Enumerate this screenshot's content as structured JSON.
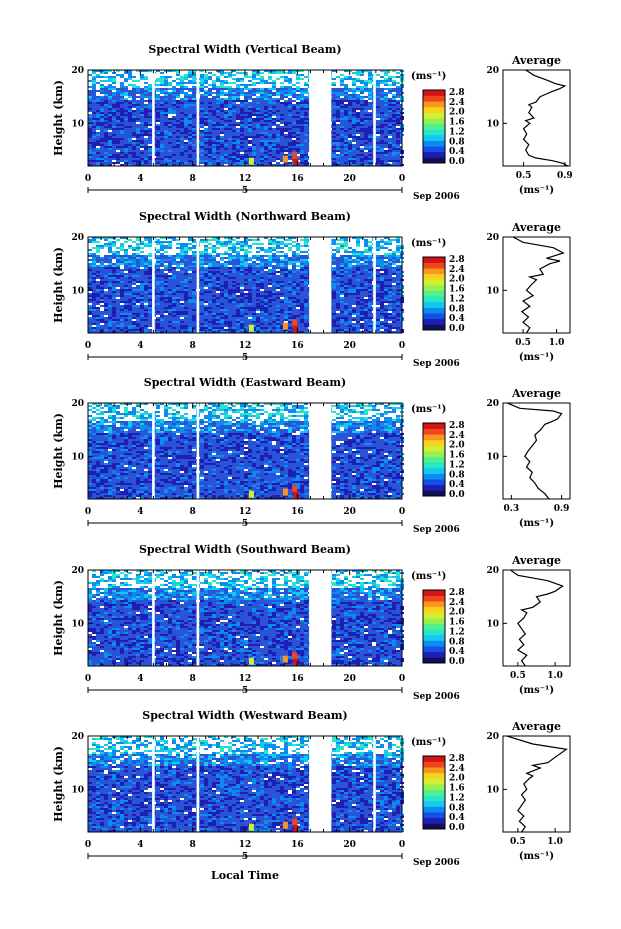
{
  "x_axis": {
    "ticks": [
      "0",
      "4",
      "8",
      "12",
      "16",
      "20",
      "0"
    ],
    "day_marker": "5",
    "date_label": "Sep 2006",
    "label": "Local Time"
  },
  "colorbar": {
    "unit": "(ms⁻¹)",
    "ticks": [
      "2.8",
      "2.4",
      "2.0",
      "1.6",
      "1.2",
      "0.8",
      "0.4",
      "0.0"
    ],
    "colors": [
      "#10105a",
      "#1e1eb4",
      "#1450e6",
      "#0a8cf0",
      "#14c8f0",
      "#28e6c8",
      "#50f08c",
      "#96f050",
      "#d2f032",
      "#fad21e",
      "#fa961e",
      "#f0461e",
      "#d21414"
    ]
  },
  "panels": [
    {
      "title": "Spectral Width (Vertical Beam)",
      "ylabel": "Height (km)",
      "avg_title": "Average",
      "avg_xticks": [
        "0.5",
        "0.9"
      ],
      "avg_unit": "(ms⁻¹)"
    },
    {
      "title": "Spectral Width (Northward Beam)",
      "ylabel": "Height (km)",
      "avg_title": "Average",
      "avg_xticks": [
        "0.5",
        "1.0"
      ],
      "avg_unit": "(ms⁻¹)"
    },
    {
      "title": "Spectral Width (Eastward Beam)",
      "ylabel": "Height (km)",
      "avg_title": "Average",
      "avg_xticks": [
        "0.3",
        "0.9"
      ],
      "avg_unit": "(ms⁻¹)"
    },
    {
      "title": "Spectral Width (Southward Beam)",
      "ylabel": "Height (km)",
      "avg_title": "Average",
      "avg_xticks": [
        "0.5",
        "1.0"
      ],
      "avg_unit": "(ms⁻¹)"
    },
    {
      "title": "Spectral Width (Westward Beam)",
      "ylabel": "Height (km)",
      "avg_title": "Average",
      "avg_xticks": [
        "0.5",
        "1.0"
      ],
      "avg_unit": "(ms⁻¹)"
    }
  ],
  "chart_data": [
    {
      "type": "heatmap",
      "title": "Spectral Width (Vertical Beam)",
      "xlabel": "",
      "ylabel": "Height (km)",
      "x_unit": "Local Time (h)",
      "xlim": [
        0,
        24
      ],
      "ylim": [
        2,
        20
      ],
      "yticks": [
        10,
        20
      ],
      "zlim": [
        0.0,
        2.8
      ],
      "data_gaps_hours": [
        [
          4.9,
          5.1
        ],
        [
          8.3,
          8.5
        ],
        [
          16.9,
          18.6
        ],
        [
          21.8,
          22.0
        ]
      ]
    },
    {
      "type": "line",
      "title": "Average",
      "xlabel": "(ms⁻¹)",
      "ylabel": "Height (km)",
      "xlim": [
        0.3,
        0.95
      ],
      "ylim": [
        2,
        20
      ],
      "x": [
        0.93,
        0.88,
        0.78,
        0.62,
        0.55,
        0.52,
        0.55,
        0.5,
        0.53,
        0.5,
        0.56,
        0.52,
        0.6,
        0.55,
        0.58,
        0.55,
        0.62,
        0.66,
        0.72,
        0.78,
        0.85,
        0.9,
        0.8,
        0.74,
        0.6,
        0.52
      ],
      "y": [
        2,
        2.5,
        3,
        3.5,
        4,
        5,
        6,
        7,
        8,
        9,
        10,
        10.5,
        11,
        12,
        13,
        13.5,
        14,
        15,
        15.5,
        16,
        16.5,
        17,
        17.5,
        18,
        19,
        20
      ]
    },
    {
      "type": "heatmap",
      "title": "Spectral Width (Northward Beam)",
      "xlabel": "",
      "ylabel": "Height (km)",
      "x_unit": "Local Time (h)",
      "xlim": [
        0,
        24
      ],
      "ylim": [
        2,
        20
      ],
      "yticks": [
        10,
        20
      ],
      "zlim": [
        0.0,
        2.8
      ],
      "data_gaps_hours": [
        [
          4.9,
          5.1
        ],
        [
          8.3,
          8.5
        ],
        [
          16.9,
          18.6
        ],
        [
          21.8,
          22.0
        ]
      ]
    },
    {
      "type": "line",
      "title": "Average",
      "xlabel": "(ms⁻¹)",
      "ylabel": "Height (km)",
      "xlim": [
        0.2,
        1.2
      ],
      "ylim": [
        2,
        20
      ],
      "x": [
        0.55,
        0.6,
        0.5,
        0.58,
        0.48,
        0.6,
        0.5,
        0.65,
        0.55,
        0.62,
        0.7,
        0.6,
        0.8,
        0.75,
        0.9,
        1.05,
        0.85,
        1.1,
        0.95,
        0.5,
        0.35
      ],
      "y": [
        2,
        3,
        4,
        5,
        6,
        7,
        8,
        9,
        10,
        11,
        12,
        12.5,
        13,
        14,
        15,
        15.5,
        16,
        17,
        18,
        19,
        20
      ]
    },
    {
      "type": "heatmap",
      "title": "Spectral Width (Eastward Beam)",
      "xlabel": "",
      "ylabel": "Height (km)",
      "x_unit": "Local Time (h)",
      "xlim": [
        0,
        24
      ],
      "ylim": [
        2,
        20
      ],
      "yticks": [
        10,
        20
      ],
      "zlim": [
        0.0,
        2.8
      ],
      "data_gaps_hours": [
        [
          4.9,
          5.1
        ],
        [
          8.3,
          8.5
        ],
        [
          16.9,
          18.6
        ]
      ]
    },
    {
      "type": "line",
      "title": "Average",
      "xlabel": "(ms⁻¹)",
      "ylabel": "Height (km)",
      "xlim": [
        0.2,
        1.0
      ],
      "ylim": [
        2,
        20
      ],
      "x": [
        0.75,
        0.7,
        0.62,
        0.58,
        0.52,
        0.55,
        0.48,
        0.52,
        0.46,
        0.5,
        0.55,
        0.6,
        0.58,
        0.65,
        0.7,
        0.78,
        0.85,
        0.9,
        0.8,
        0.4,
        0.25
      ],
      "y": [
        2,
        3,
        4,
        5,
        6,
        7,
        8,
        9,
        10,
        11,
        12,
        13,
        14,
        15,
        16,
        16.5,
        17,
        18,
        18.5,
        19,
        20
      ]
    },
    {
      "type": "heatmap",
      "title": "Spectral Width (Southward Beam)",
      "xlabel": "",
      "ylabel": "Height (km)",
      "x_unit": "Local Time (h)",
      "xlim": [
        0,
        24
      ],
      "ylim": [
        2,
        20
      ],
      "yticks": [
        10,
        20
      ],
      "zlim": [
        0.0,
        2.8
      ],
      "data_gaps_hours": [
        [
          4.9,
          5.1
        ],
        [
          8.3,
          8.5
        ],
        [
          16.9,
          18.6
        ]
      ]
    },
    {
      "type": "line",
      "title": "Average",
      "xlabel": "(ms⁻¹)",
      "ylabel": "Height (km)",
      "xlim": [
        0.3,
        1.2
      ],
      "ylim": [
        2,
        20
      ],
      "x": [
        0.6,
        0.55,
        0.62,
        0.5,
        0.58,
        0.52,
        0.6,
        0.55,
        0.5,
        0.58,
        0.62,
        0.55,
        0.7,
        0.8,
        0.75,
        0.9,
        1.0,
        1.1,
        0.9,
        0.5,
        0.4
      ],
      "y": [
        2,
        3,
        4,
        5,
        6,
        7,
        8,
        9,
        10,
        11,
        12,
        12.5,
        13,
        14,
        15,
        15.5,
        16,
        17,
        18,
        19,
        20
      ]
    },
    {
      "type": "heatmap",
      "title": "Spectral Width (Westward Beam)",
      "xlabel": "Local Time",
      "ylabel": "Height (km)",
      "x_unit": "Local Time (h)",
      "xlim": [
        0,
        24
      ],
      "ylim": [
        2,
        20
      ],
      "yticks": [
        10,
        20
      ],
      "zlim": [
        0.0,
        2.8
      ],
      "data_gaps_hours": [
        [
          4.9,
          5.1
        ],
        [
          8.3,
          8.5
        ],
        [
          16.9,
          18.6
        ],
        [
          21.8,
          22.0
        ]
      ]
    },
    {
      "type": "line",
      "title": "Average",
      "xlabel": "(ms⁻¹)",
      "ylabel": "Height (km)",
      "xlim": [
        0.3,
        1.2
      ],
      "ylim": [
        2,
        20
      ],
      "x": [
        0.55,
        0.6,
        0.52,
        0.58,
        0.5,
        0.55,
        0.6,
        0.55,
        0.62,
        0.58,
        0.65,
        0.7,
        0.62,
        0.8,
        0.7,
        0.9,
        1.0,
        1.1,
        1.15,
        0.7,
        0.35
      ],
      "y": [
        2,
        3,
        4,
        5,
        6,
        7,
        8,
        9,
        10,
        11,
        12,
        12.5,
        13,
        14,
        14.5,
        15,
        16,
        17,
        17.5,
        18.5,
        20
      ]
    }
  ]
}
